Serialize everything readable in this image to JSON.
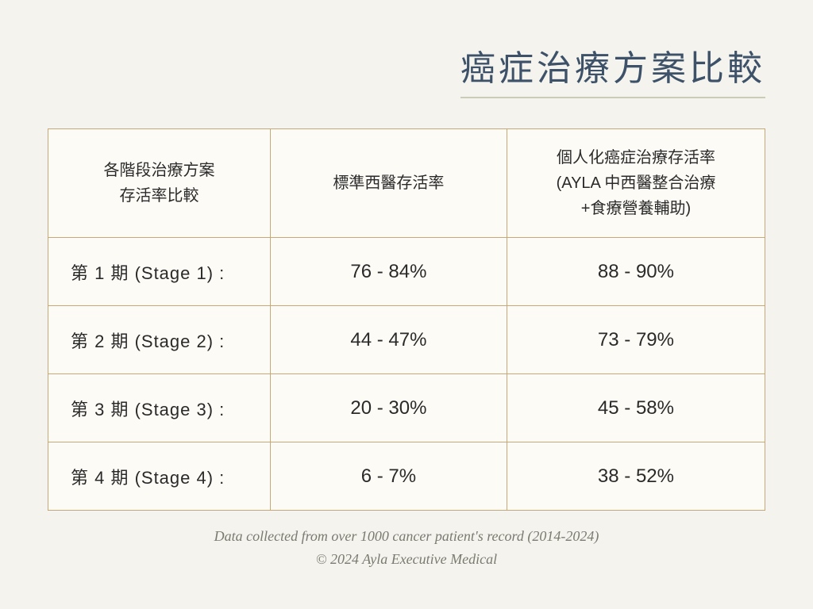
{
  "title": "癌症治療方案比較",
  "table": {
    "columns": [
      "各階段治療方案\n存活率比較",
      "標準西醫存活率",
      "個人化癌症治療存活率\n(AYLA 中西醫整合治療\n+食療營養輔助)"
    ],
    "rows": [
      {
        "stage": "第 1 期 (Stage 1) :",
        "standard": "76 - 84%",
        "ayla": "88 - 90%"
      },
      {
        "stage": "第 2 期 (Stage 2) :",
        "standard": "44 - 47%",
        "ayla": "73 - 79%"
      },
      {
        "stage": "第 3 期 (Stage 3) :",
        "standard": "20 - 30%",
        "ayla": "45 - 58%"
      },
      {
        "stage": "第 4 期 (Stage 4) :",
        "standard": "6 - 7%",
        "ayla": "38 - 52%"
      }
    ],
    "border_color": "#c8a878",
    "cell_bg": "#fdfbf6",
    "header_fontsize": 20,
    "cell_fontsize": 24,
    "stage_fontsize": 22
  },
  "footer": {
    "line1": "Data collected from over 1000 cancer patient's record (2014-2024)",
    "line2": "© 2024 Ayla Executive Medical"
  },
  "colors": {
    "background": "#f4f3ee",
    "title": "#3d5168",
    "title_underline": "#c9cdb8",
    "text": "#2a2a2a",
    "footer_text": "#7a7a70"
  }
}
